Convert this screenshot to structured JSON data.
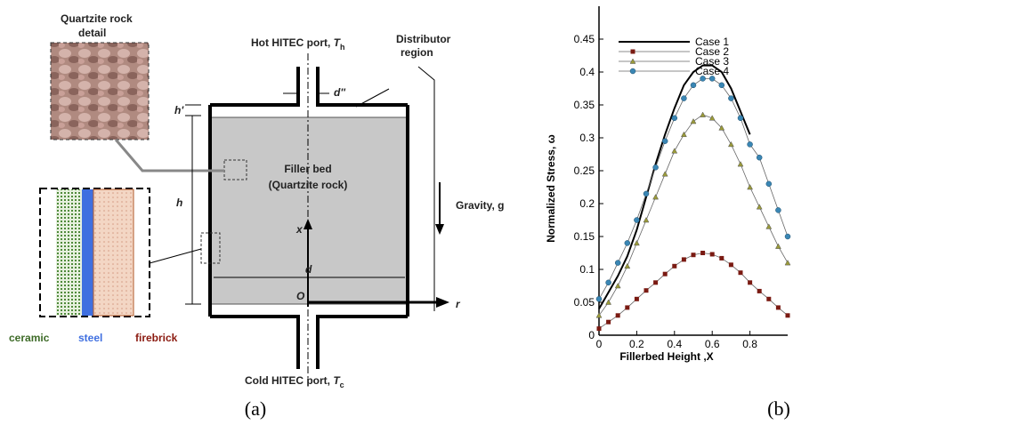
{
  "diagram": {
    "rock_label": [
      "Quartzite rock",
      "detail"
    ],
    "hot_port": {
      "text": "Hot HITEC port, ",
      "var": "T",
      "sub": "h"
    },
    "cold_port": {
      "text": "Cold HITEC port, ",
      "var": "T",
      "sub": "c"
    },
    "distributor": [
      "Distributor",
      "region"
    ],
    "port_width": "d''",
    "h_prime": "h'",
    "h": "h",
    "bed": [
      "Filler bed",
      "(Quartzite rock)"
    ],
    "gravity": "Gravity, g",
    "x_axis": "x",
    "d": "d",
    "origin": "O",
    "r_axis": "r",
    "layers": [
      "ceramic",
      "steel",
      "firebrick"
    ]
  },
  "captions": [
    "(a)",
    "(b)"
  ],
  "chart_data": {
    "type": "line",
    "xlabel": "Fillerbed Height ,X",
    "ylabel": "Normalized Stress, ω",
    "x": [
      0,
      0.05,
      0.1,
      0.15,
      0.2,
      0.25,
      0.3,
      0.35,
      0.4,
      0.45,
      0.5,
      0.55,
      0.6,
      0.65,
      0.7,
      0.75,
      0.8,
      0.85,
      0.9,
      0.95,
      1.0
    ],
    "xlim": [
      0,
      1.0
    ],
    "xticks": [
      0,
      0.2,
      0.4,
      0.6,
      0.8
    ],
    "ylim": [
      0,
      0.5
    ],
    "yticks": [
      0,
      0.05,
      0.1,
      0.15,
      0.2,
      0.25,
      0.3,
      0.35,
      0.4,
      0.45
    ],
    "legend": "upper left",
    "series": [
      {
        "name": "Case 1",
        "color": "#000000",
        "marker": "none",
        "values": [
          0.04,
          0.065,
          0.09,
          0.12,
          0.16,
          0.21,
          0.26,
          0.305,
          0.345,
          0.38,
          0.4,
          0.41,
          0.41,
          0.4,
          0.375,
          0.34,
          0.305,
          null,
          null,
          null,
          null
        ]
      },
      {
        "name": "Case 2",
        "color": "#7a1a12",
        "marker": "square",
        "values": [
          0.01,
          0.02,
          0.03,
          0.042,
          0.055,
          0.068,
          0.08,
          0.093,
          0.105,
          0.115,
          0.122,
          0.125,
          0.123,
          0.117,
          0.107,
          0.095,
          0.08,
          0.067,
          0.055,
          0.042,
          0.03
        ]
      },
      {
        "name": "Case 3",
        "color": "#9a9a3a",
        "marker": "triangle",
        "values": [
          0.03,
          0.05,
          0.075,
          0.105,
          0.14,
          0.175,
          0.21,
          0.245,
          0.28,
          0.305,
          0.325,
          0.335,
          0.33,
          0.315,
          0.29,
          0.26,
          0.225,
          0.195,
          0.165,
          0.135,
          0.11
        ]
      },
      {
        "name": "Case 4",
        "color": "#3a86b4",
        "marker": "circle",
        "values": [
          0.055,
          0.08,
          0.11,
          0.14,
          0.175,
          0.215,
          0.255,
          0.295,
          0.33,
          0.36,
          0.38,
          0.39,
          0.39,
          0.38,
          0.36,
          0.33,
          0.29,
          0.27,
          0.23,
          0.19,
          0.15
        ]
      }
    ]
  }
}
